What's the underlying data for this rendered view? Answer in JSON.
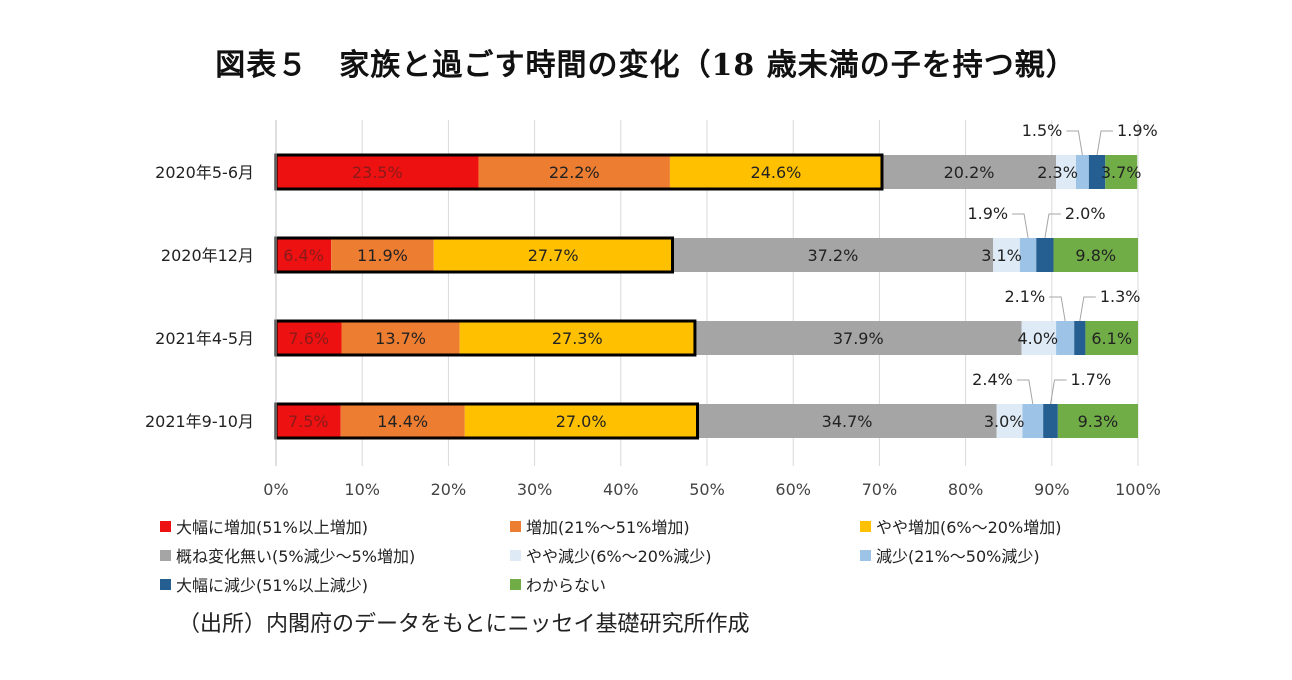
{
  "title": "図表５　家族と過ごす時間の変化（18 歳未満の子を持つ親）",
  "source": "（出所）内閣府のデータをもとにニッセイ基礎研究所作成",
  "chart_data": {
    "type": "bar",
    "orientation": "horizontal",
    "stacked": true,
    "categories": [
      "2020年5-6月",
      "2020年12月",
      "2021年4-5月",
      "2021年9-10月"
    ],
    "series": [
      {
        "name": "大幅に増加(51%以上増加)",
        "color": "#ee1111",
        "values": [
          23.5,
          6.4,
          7.6,
          7.5
        ],
        "labels": [
          "23.5%",
          "6.4%",
          "7.6%",
          "7.5%"
        ]
      },
      {
        "name": "増加(21%～51%増加)",
        "color": "#ed7d31",
        "values": [
          22.2,
          11.9,
          13.7,
          14.4
        ],
        "labels": [
          "22.2%",
          "11.9%",
          "13.7%",
          "14.4%"
        ]
      },
      {
        "name": "やや増加(6%～20%増加)",
        "color": "#ffc000",
        "values": [
          24.6,
          27.7,
          27.3,
          27.0
        ],
        "labels": [
          "24.6%",
          "27.7%",
          "27.3%",
          "27.0%"
        ]
      },
      {
        "name": "概ね変化無い(5%減少～5%増加)",
        "color": "#a5a5a5",
        "values": [
          20.2,
          37.2,
          37.9,
          34.7
        ],
        "labels": [
          "20.2%",
          "37.2%",
          "37.9%",
          "34.7%"
        ]
      },
      {
        "name": "やや減少(6%～20%減少)",
        "color": "#deebf7",
        "values": [
          2.3,
          3.1,
          4.0,
          3.0
        ],
        "labels": [
          "2.3%",
          "3.1%",
          "4.0%",
          "3.0%"
        ]
      },
      {
        "name": "減少(21%～50%減少)",
        "color": "#9dc3e6",
        "values": [
          1.5,
          1.9,
          2.1,
          2.4
        ],
        "labels": [
          "1.5%",
          "1.9%",
          "2.1%",
          "2.4%"
        ]
      },
      {
        "name": "大幅に減少(51%以上減少)",
        "color": "#255e91",
        "values": [
          1.9,
          2.0,
          1.3,
          1.7
        ],
        "labels": [
          "1.9%",
          "2.0%",
          "1.3%",
          "1.7%"
        ]
      },
      {
        "name": "わからない",
        "color": "#70ad47",
        "values": [
          3.7,
          9.8,
          6.1,
          9.3
        ],
        "labels": [
          "3.7%",
          "9.8%",
          "6.1%",
          "9.3%"
        ]
      }
    ],
    "xlim": [
      0,
      100
    ],
    "xticks": [
      "0%",
      "10%",
      "20%",
      "30%",
      "40%",
      "50%",
      "60%",
      "70%",
      "80%",
      "90%",
      "100%"
    ],
    "grid": true,
    "highlight": "Black outline around the combined increase segments (大幅に増加 + 増加 + やや増加) for each bar",
    "legend_position": "bottom"
  }
}
